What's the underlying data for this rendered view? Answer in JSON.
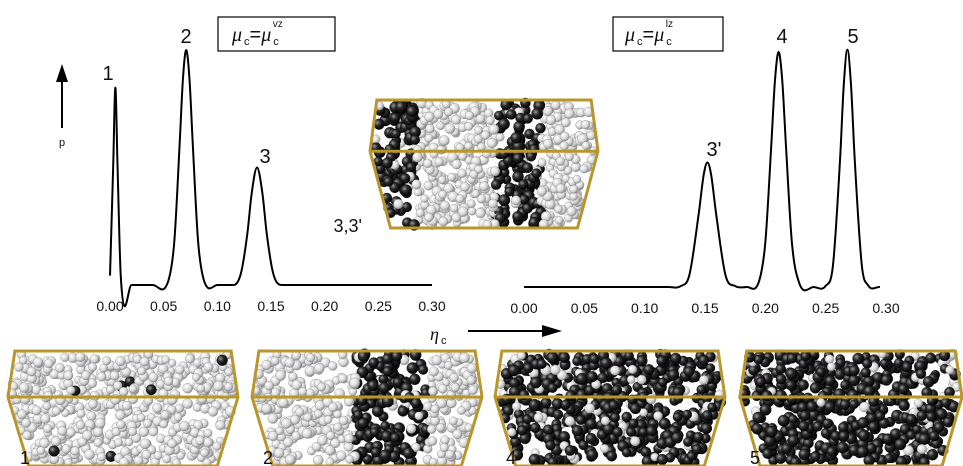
{
  "chart_data": [
    {
      "type": "line",
      "x": [
        0,
        0.003,
        0.005,
        0.007,
        0.01,
        0.02,
        0.04,
        0.055,
        0.06,
        0.065,
        0.068,
        0.071,
        0.074,
        0.077,
        0.082,
        0.087,
        0.1,
        0.115,
        0.122,
        0.128,
        0.132,
        0.137,
        0.142,
        0.146,
        0.152,
        0.16,
        0.18,
        0.3
      ],
      "values": [
        0.04,
        0.51,
        0.84,
        0.51,
        0.04,
        0,
        0,
        0.028,
        0.19,
        0.61,
        0.88,
        1,
        0.88,
        0.61,
        0.19,
        0.028,
        0,
        0,
        0.05,
        0.22,
        0.39,
        0.5,
        0.39,
        0.22,
        0.05,
        0,
        0,
        0
      ],
      "color": "#000000",
      "xlim": [
        0,
        0.3
      ],
      "ylim": [
        0,
        1.1
      ],
      "xticks": [
        {
          "value": 0,
          "label": "0.00"
        },
        {
          "value": 0.05,
          "label": "0.05"
        },
        {
          "value": 0.1,
          "label": "0.10"
        },
        {
          "value": 0.15,
          "label": "0.15"
        },
        {
          "value": 0.2,
          "label": "0.20"
        },
        {
          "value": 0.25,
          "label": "0.25"
        },
        {
          "value": 0.3,
          "label": "0.30"
        }
      ],
      "ylabel": "p",
      "xlabel": {
        "symbol": "η",
        "sub": "c"
      },
      "annotations": [
        "1",
        "2",
        "3"
      ],
      "condition": {
        "mu": "μ",
        "sub": "c",
        "eq": "=",
        "mu2": "μ",
        "sub2": "c",
        "sup": "vz"
      }
    },
    {
      "type": "line",
      "x": [
        0,
        0.12,
        0.13,
        0.137,
        0.145,
        0.149,
        0.152,
        0.155,
        0.159,
        0.167,
        0.175,
        0.185,
        0.195,
        0.2,
        0.205,
        0.208,
        0.211,
        0.214,
        0.217,
        0.222,
        0.228,
        0.24,
        0.25,
        0.256,
        0.262,
        0.265,
        0.268,
        0.271,
        0.274,
        0.28,
        0.285,
        0.295
      ],
      "values": [
        0,
        0,
        0.004,
        0.05,
        0.32,
        0.48,
        0.53,
        0.48,
        0.32,
        0.05,
        0.004,
        0,
        0.028,
        0.19,
        0.61,
        0.88,
        1,
        0.88,
        0.61,
        0.19,
        0.018,
        0,
        0.005,
        0.09,
        0.55,
        0.86,
        1.01,
        0.86,
        0.55,
        0.09,
        0.008,
        0
      ],
      "color": "#000000",
      "xlim": [
        0,
        0.3
      ],
      "ylim": [
        0,
        1.1
      ],
      "xticks": [
        {
          "value": 0,
          "label": "0.00"
        },
        {
          "value": 0.05,
          "label": "0.05"
        },
        {
          "value": 0.1,
          "label": "0.10"
        },
        {
          "value": 0.15,
          "label": "0.15"
        },
        {
          "value": 0.2,
          "label": "0.20"
        },
        {
          "value": 0.25,
          "label": "0.25"
        },
        {
          "value": 0.3,
          "label": "0.30"
        }
      ],
      "annotations": [
        "3'",
        "4",
        "5"
      ],
      "condition": {
        "mu": "μ",
        "sub": "c",
        "eq": "=",
        "mu2": "μ",
        "sub2": "c",
        "sup": "lz"
      }
    }
  ],
  "snapshots": [
    "1",
    "2",
    "4",
    "5"
  ],
  "center_snapshot": "3,3'"
}
